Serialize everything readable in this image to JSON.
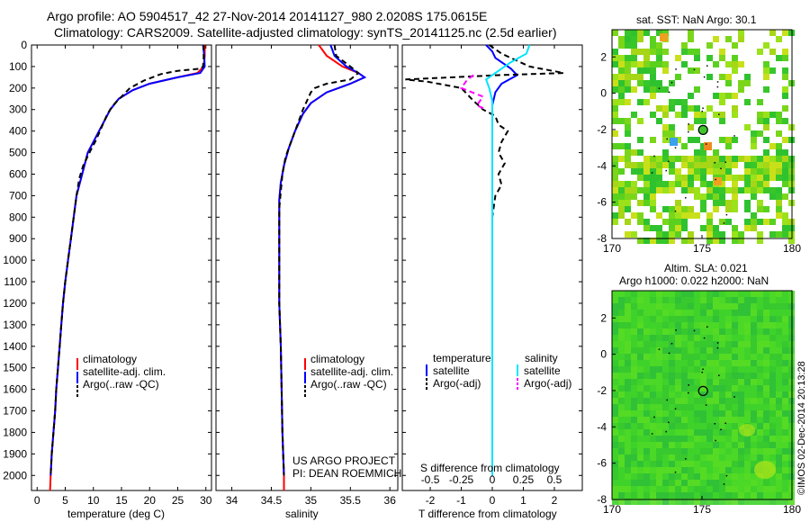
{
  "figure": {
    "title_line1": "Argo profile: AO 5904517_42 27-Nov-2014 20141127_980 2.0208S 175.0615E",
    "title_line2": "Climatology: CARS2009. Satellite-adjusted climatology: synTS_20141125.nc (2.5d earlier)",
    "watermark": "©IMOS 02-Dec-2014 20:13:28",
    "project_line1": "US ARGO PROJECT",
    "project_line2": "PI: DEAN ROEMMICH"
  },
  "colors": {
    "climatology": "#ff0000",
    "satellite": "#0000ff",
    "argo": "#000000",
    "sat_salinity": "#00e5ff",
    "argo_salinity": "#ff00ff"
  },
  "chart_data": [
    {
      "type": "line",
      "panel": "temperature",
      "xlabel": "temperature (deg C)",
      "x_ticks": [
        0,
        5,
        10,
        15,
        20,
        25,
        30
      ],
      "xlim": [
        -1,
        31
      ],
      "ylim": [
        2070,
        0
      ],
      "y_ticks": [
        0,
        100,
        200,
        300,
        400,
        500,
        600,
        700,
        800,
        900,
        1000,
        1100,
        1200,
        1300,
        1400,
        1500,
        1600,
        1700,
        1800,
        1900,
        2000
      ],
      "legend": [
        "climatology",
        "satellite-adj. clim.",
        "Argo(..raw -QC)"
      ],
      "series": [
        {
          "name": "climatology",
          "color": "#ff0000",
          "style": "solid",
          "points": [
            [
              29.8,
              0
            ],
            [
              29.8,
              50
            ],
            [
              29.6,
              100
            ],
            [
              28.5,
              130
            ],
            [
              25,
              150
            ],
            [
              20,
              180
            ],
            [
              17,
              210
            ],
            [
              14.5,
              250
            ],
            [
              13,
              300
            ],
            [
              12,
              350
            ],
            [
              11,
              400
            ],
            [
              10,
              450
            ],
            [
              9,
              500
            ],
            [
              8,
              600
            ],
            [
              7,
              700
            ],
            [
              6.5,
              800
            ],
            [
              6,
              900
            ],
            [
              5.5,
              1000
            ],
            [
              5,
              1100
            ],
            [
              4.6,
              1200
            ],
            [
              4.3,
              1300
            ],
            [
              4,
              1400
            ],
            [
              3.7,
              1500
            ],
            [
              3.4,
              1600
            ],
            [
              3.2,
              1700
            ],
            [
              2.9,
              1800
            ],
            [
              2.6,
              1900
            ],
            [
              2.4,
              2000
            ],
            [
              2.3,
              2070
            ]
          ]
        },
        {
          "name": "satellite-adj. clim.",
          "color": "#0000ff",
          "style": "solid",
          "points": [
            [
              29.5,
              0
            ],
            [
              29.7,
              50
            ],
            [
              29.8,
              100
            ],
            [
              29,
              130
            ],
            [
              25,
              150
            ],
            [
              20,
              180
            ],
            [
              17,
              210
            ],
            [
              14.5,
              250
            ],
            [
              13,
              300
            ],
            [
              12,
              350
            ],
            [
              11,
              400
            ],
            [
              10,
              450
            ],
            [
              9,
              500
            ],
            [
              8,
              600
            ],
            [
              7,
              700
            ],
            [
              6.5,
              800
            ],
            [
              6,
              900
            ],
            [
              5.5,
              1000
            ],
            [
              5,
              1100
            ],
            [
              4.6,
              1200
            ],
            [
              4.3,
              1300
            ],
            [
              4,
              1400
            ],
            [
              3.7,
              1500
            ],
            [
              3.4,
              1600
            ],
            [
              3.2,
              1700
            ],
            [
              2.9,
              1800
            ],
            [
              2.6,
              1900
            ],
            [
              2.4,
              2000
            ]
          ]
        },
        {
          "name": "Argo(..raw -QC)",
          "color": "#000000",
          "style": "dashed",
          "points": [
            [
              29.6,
              0
            ],
            [
              29.6,
              60
            ],
            [
              29.5,
              100
            ],
            [
              29,
              110
            ],
            [
              25,
              120
            ],
            [
              22,
              135
            ],
            [
              19,
              165
            ],
            [
              16.5,
              200
            ],
            [
              15,
              240
            ],
            [
              13.5,
              280
            ],
            [
              12.5,
              320
            ],
            [
              11.5,
              380
            ],
            [
              10.5,
              440
            ],
            [
              9.5,
              490
            ],
            [
              8.2,
              560
            ],
            [
              7.5,
              620
            ],
            [
              7,
              700
            ],
            [
              6.5,
              800
            ],
            [
              6,
              900
            ],
            [
              5.5,
              1000
            ],
            [
              5,
              1100
            ],
            [
              4.6,
              1200
            ],
            [
              4.3,
              1300
            ],
            [
              4,
              1400
            ],
            [
              3.7,
              1500
            ],
            [
              3.4,
              1600
            ],
            [
              3.2,
              1700
            ],
            [
              2.9,
              1800
            ],
            [
              2.6,
              1900
            ],
            [
              2.4,
              2000
            ]
          ]
        }
      ]
    },
    {
      "type": "line",
      "panel": "salinity",
      "xlabel": "salinity",
      "x_ticks": [
        34,
        34.5,
        35,
        35.5,
        36
      ],
      "xlim": [
        33.8,
        36.1
      ],
      "ylim": [
        2070,
        0
      ],
      "legend": [
        "climatology",
        "satellite-adj. clim.",
        "Argo(..raw -QC)"
      ],
      "series": [
        {
          "name": "climatology",
          "color": "#ff0000",
          "style": "solid",
          "points": [
            [
              35.1,
              0
            ],
            [
              35.2,
              50
            ],
            [
              35.4,
              100
            ],
            [
              35.6,
              130
            ],
            [
              35.68,
              150
            ],
            [
              35.5,
              180
            ],
            [
              35.2,
              220
            ],
            [
              35.0,
              270
            ],
            [
              34.9,
              320
            ],
            [
              34.8,
              400
            ],
            [
              34.72,
              480
            ],
            [
              34.66,
              560
            ],
            [
              34.62,
              640
            ],
            [
              34.6,
              720
            ],
            [
              34.6,
              800
            ],
            [
              34.6,
              900
            ],
            [
              34.6,
              1000
            ],
            [
              34.6,
              1200
            ],
            [
              34.62,
              1400
            ],
            [
              34.63,
              1600
            ],
            [
              34.64,
              1800
            ],
            [
              34.66,
              2000
            ],
            [
              34.66,
              2070
            ]
          ]
        },
        {
          "name": "satellite-adj. clim.",
          "color": "#0000ff",
          "style": "solid",
          "points": [
            [
              35.25,
              0
            ],
            [
              35.3,
              50
            ],
            [
              35.45,
              100
            ],
            [
              35.6,
              130
            ],
            [
              35.68,
              150
            ],
            [
              35.5,
              180
            ],
            [
              35.2,
              220
            ],
            [
              35.0,
              270
            ],
            [
              34.9,
              320
            ],
            [
              34.8,
              400
            ],
            [
              34.72,
              480
            ],
            [
              34.66,
              560
            ],
            [
              34.62,
              640
            ],
            [
              34.6,
              720
            ],
            [
              34.6,
              800
            ],
            [
              34.6,
              900
            ],
            [
              34.6,
              1000
            ],
            [
              34.6,
              1200
            ],
            [
              34.62,
              1400
            ],
            [
              34.63,
              1600
            ],
            [
              34.64,
              1800
            ],
            [
              34.66,
              2000
            ]
          ]
        },
        {
          "name": "Argo(..raw -QC)",
          "color": "#000000",
          "style": "dashed",
          "points": [
            [
              35.3,
              0
            ],
            [
              35.32,
              50
            ],
            [
              35.5,
              100
            ],
            [
              35.6,
              130
            ],
            [
              35.5,
              160
            ],
            [
              35.2,
              180
            ],
            [
              35.05,
              200
            ],
            [
              35.0,
              220
            ],
            [
              34.95,
              260
            ],
            [
              34.9,
              300
            ],
            [
              34.82,
              380
            ],
            [
              34.75,
              450
            ],
            [
              34.68,
              520
            ],
            [
              34.64,
              600
            ],
            [
              34.62,
              680
            ],
            [
              34.6,
              760
            ],
            [
              34.6,
              900
            ],
            [
              34.6,
              1000
            ],
            [
              34.6,
              1200
            ],
            [
              34.62,
              1400
            ],
            [
              34.63,
              1600
            ],
            [
              34.64,
              1800
            ],
            [
              34.66,
              2000
            ]
          ]
        }
      ]
    },
    {
      "type": "line",
      "panel": "difference",
      "xlabel": "T difference from climatology",
      "x2label": "S difference from climatology",
      "x_ticks": [
        -2,
        -1,
        0,
        1,
        2
      ],
      "x2_ticks": [
        "-0.5",
        "-0.25",
        "0",
        "0.25",
        "0.5"
      ],
      "xlim": [
        -2.9,
        2.9
      ],
      "ylim": [
        2070,
        0
      ],
      "legend_titles": [
        "temperature",
        "salinity"
      ],
      "legend": [
        "satellite",
        "Argo(-adj)",
        "satellite",
        "Argo(-adj)"
      ],
      "series": [
        {
          "name": "satellite",
          "group": "temperature",
          "color": "#0000ff",
          "style": "solid",
          "points": [
            [
              -0.2,
              0
            ],
            [
              0,
              30
            ],
            [
              0.1,
              60
            ],
            [
              0.6,
              110
            ],
            [
              0.8,
              140
            ],
            [
              0.3,
              180
            ],
            [
              0.1,
              220
            ],
            [
              0,
              280
            ],
            [
              0,
              400
            ],
            [
              0,
              600
            ],
            [
              0,
              1000
            ],
            [
              0,
              2000
            ]
          ]
        },
        {
          "name": "Argo(-adj)",
          "group": "temperature",
          "color": "#000000",
          "style": "dashed",
          "points": [
            [
              -0.1,
              0
            ],
            [
              0.3,
              40
            ],
            [
              1.2,
              100
            ],
            [
              2.3,
              130
            ],
            [
              0.2,
              140
            ],
            [
              -2.8,
              160
            ],
            [
              -2.1,
              170
            ],
            [
              -1.0,
              200
            ],
            [
              -0.6,
              260
            ],
            [
              -0.3,
              300
            ],
            [
              0.1,
              330
            ],
            [
              0.2,
              370
            ],
            [
              0.5,
              400
            ],
            [
              0.3,
              450
            ],
            [
              0.2,
              500
            ],
            [
              0.4,
              550
            ],
            [
              0.2,
              600
            ],
            [
              0.3,
              650
            ],
            [
              0.1,
              700
            ],
            [
              0,
              800
            ],
            [
              0,
              900
            ],
            [
              0,
              1000
            ],
            [
              0,
              1500
            ],
            [
              0,
              2000
            ]
          ]
        },
        {
          "name": "satellite",
          "group": "salinity",
          "color": "#00e5ff",
          "style": "solid",
          "points": [
            [
              1.2,
              0
            ],
            [
              1.1,
              40
            ],
            [
              0.6,
              80
            ],
            [
              0.2,
              120
            ],
            [
              -0.2,
              160
            ],
            [
              -0.1,
              200
            ],
            [
              0,
              260
            ],
            [
              0,
              400
            ],
            [
              0,
              1000
            ],
            [
              0,
              2000
            ]
          ]
        },
        {
          "name": "Argo(-adj)",
          "group": "salinity",
          "color": "#ff00ff",
          "style": "dashed",
          "points": [
            [
              -0.6,
              140
            ],
            [
              -0.8,
              160
            ],
            [
              -1.0,
              200
            ],
            [
              -0.3,
              240
            ],
            [
              -0.5,
              280
            ],
            [
              -0.2,
              300
            ]
          ]
        }
      ]
    },
    {
      "type": "heatmap",
      "panel": "sst-map",
      "title": "sat. SST: NaN Argo: 30.1",
      "x_ticks": [
        170,
        175,
        180
      ],
      "y_ticks": [
        2,
        0,
        -2,
        -4,
        -6,
        -8
      ],
      "xlim": [
        170,
        180
      ],
      "ylim": [
        -8,
        3.5
      ],
      "argo_position": [
        175.06,
        -2.02
      ]
    },
    {
      "type": "heatmap",
      "panel": "sla-map",
      "title_line1": "Altim. SLA: 0.021",
      "title_line2": "Argo h1000: 0.022 h2000: NaN",
      "x_ticks": [
        170,
        175,
        180
      ],
      "y_ticks": [
        2,
        0,
        -2,
        -4,
        -6,
        -8
      ],
      "xlim": [
        170,
        180
      ],
      "ylim": [
        -8,
        3.5
      ],
      "argo_position": [
        175.06,
        -2.02
      ]
    }
  ],
  "y_tick_labels": [
    "0",
    "100",
    "200",
    "300",
    "400",
    "500",
    "600",
    "700",
    "800",
    "900",
    "1000",
    "1100",
    "1200",
    "1300",
    "1400",
    "1500",
    "1600",
    "1700",
    "1800",
    "1900",
    "2000"
  ]
}
